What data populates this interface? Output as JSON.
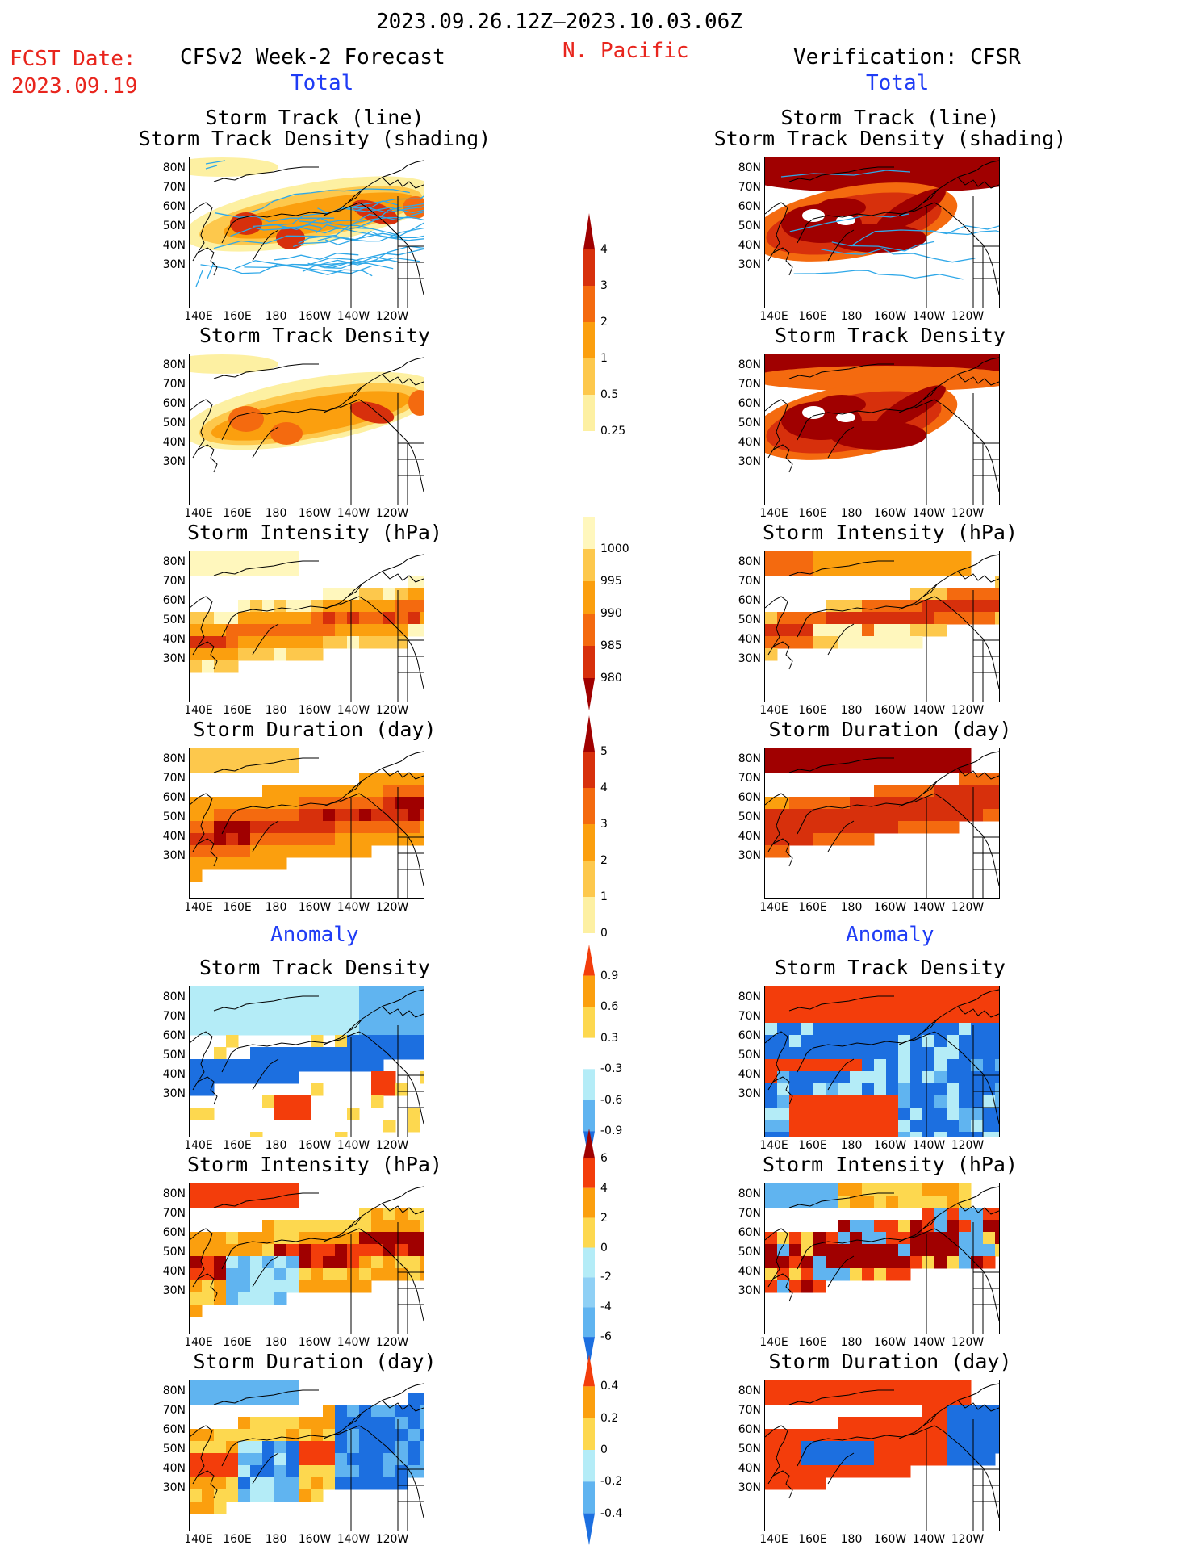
{
  "header": {
    "period": "2023.09.26.12Z–2023.10.03.06Z",
    "region": "N. Pacific",
    "fcst_label": "FCST Date:",
    "fcst_date": "2023.09.19",
    "forecast_title": "CFSv2 Week-2 Forecast",
    "verification_title": "Verification: CFSR"
  },
  "sections": {
    "total": "Total",
    "anomaly": "Anomaly"
  },
  "panel_titles": {
    "track_line": "Storm Track (line)",
    "track_shading": "Storm Track Density (shading)",
    "track_density": "Storm Track Density",
    "intensity": "Storm Intensity (hPa)",
    "duration": "Storm Duration (day)"
  },
  "axes": {
    "lat_ticks": [
      "80N",
      "70N",
      "60N",
      "50N",
      "40N",
      "30N"
    ],
    "lon_ticks": [
      "140E",
      "160E",
      "180",
      "160W",
      "140W",
      "120W"
    ]
  },
  "colorbars": {
    "track_density_total": {
      "labels": [
        "4",
        "3",
        "2",
        "1",
        "0.5",
        "0.25"
      ],
      "colors": [
        "#a00000",
        "#d7300c",
        "#f46a0f",
        "#fb9f0e",
        "#fdc84c",
        "#fdf0a2"
      ]
    },
    "intensity_total": {
      "labels": [
        "1000",
        "995",
        "990",
        "985",
        "980"
      ],
      "colors": [
        "#fff7bd",
        "#fdc84c",
        "#fb9f0e",
        "#f46a0f",
        "#d7300c",
        "#a00000"
      ]
    },
    "duration_total": {
      "labels": [
        "5",
        "4",
        "3",
        "2",
        "1",
        "0"
      ],
      "colors": [
        "#a00000",
        "#d7300c",
        "#f46a0f",
        "#fb9f0e",
        "#fdc84c",
        "#fdf0a2"
      ]
    },
    "track_density_anom": {
      "labels": [
        "0.9",
        "0.6",
        "0.3",
        "-0.3",
        "-0.6",
        "-0.9"
      ],
      "colors": [
        "#f33d0b",
        "#fb9f0e",
        "#fdd84f",
        "#ffffff",
        "#b4ecf7",
        "#60b4f0",
        "#1c6fe0"
      ]
    },
    "intensity_anom": {
      "labels": [
        "6",
        "4",
        "2",
        "0",
        "-2",
        "-4",
        "-6"
      ],
      "colors": [
        "#a00000",
        "#f33d0b",
        "#fb9f0e",
        "#fdd84f",
        "#b4ecf7",
        "#8fd0f5",
        "#60b4f0",
        "#1c6fe0"
      ]
    },
    "duration_anom": {
      "labels": [
        "0.4",
        "0.2",
        "0",
        "-0.2",
        "-0.4"
      ],
      "colors": [
        "#f33d0b",
        "#fb9f0e",
        "#fdd84f",
        "#b4ecf7",
        "#60b4f0",
        "#1c6fe0"
      ]
    }
  }
}
